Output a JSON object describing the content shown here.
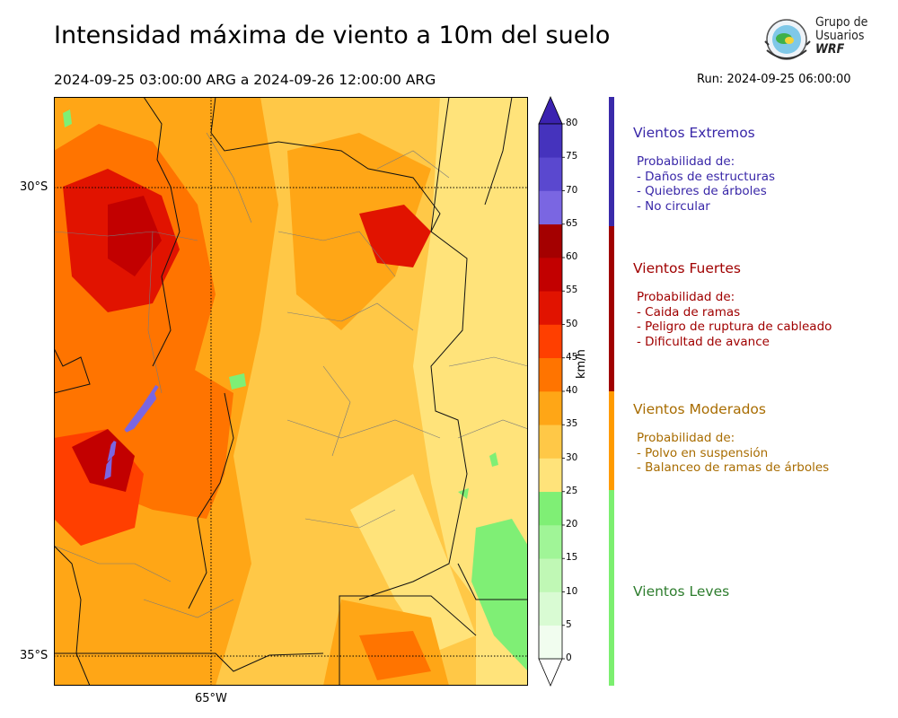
{
  "title": "Intensidad máxima de viento a 10m del suelo",
  "period": "2024-09-25 03:00:00 ARG  a  2024-09-26 12:00:00 ARG",
  "run": "Run: 2024-09-25 06:00:00",
  "logo": {
    "line1": "Grupo de",
    "line2": "Usuarios",
    "line3": "WRF"
  },
  "map": {
    "lat_labels": [
      "30°S",
      "35°S"
    ],
    "lon_labels": [
      "65°W"
    ]
  },
  "colorbar": {
    "unit": "km/h",
    "ticks": [
      "0",
      "5",
      "10",
      "15",
      "20",
      "25",
      "30",
      "35",
      "40",
      "45",
      "50",
      "55",
      "60",
      "65",
      "70",
      "75",
      "80"
    ],
    "colors": [
      "#f1fdef",
      "#d9fbd3",
      "#c0f8b5",
      "#a0f597",
      "#7fef75",
      "#ffe37a",
      "#ffc847",
      "#ffa616",
      "#ff7400",
      "#ff3f00",
      "#e11300",
      "#c20000",
      "#a40000",
      "#7a66e2",
      "#5a48cf",
      "#4533bd"
    ],
    "extend_color": "#3b22b0"
  },
  "categories": [
    {
      "title": "Vientos Extremos",
      "color": "#3927a8",
      "lines": [
        "Probabilidad de:",
        "- Daños de estructuras",
        "- Quiebres de árboles",
        "- No circular"
      ]
    },
    {
      "title": "Vientos Fuertes",
      "color": "#a00000",
      "lines": [
        "Probabilidad de:",
        "- Caida de ramas",
        "- Peligro de ruptura de cableado",
        "- Dificultad de avance"
      ]
    },
    {
      "title": "Vientos Moderados",
      "color": "#a86c00",
      "lines": [
        "Probabilidad de:",
        "- Polvo en suspensión",
        "- Balanceo de ramas de árboles"
      ]
    },
    {
      "title": "Vientos Leves",
      "color": "#2e7d2e",
      "lines": []
    }
  ],
  "category_bar_colors": [
    "#3a2aaa",
    "#a00000",
    "#ff9b00",
    "#7cef70"
  ]
}
